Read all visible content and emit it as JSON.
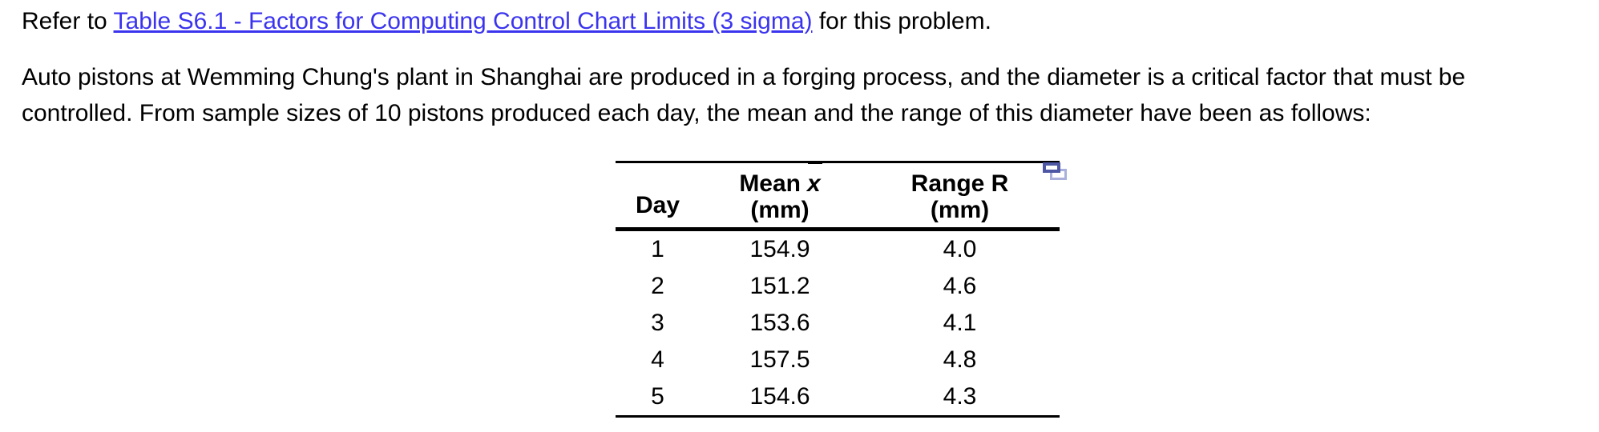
{
  "colors": {
    "background": "#ffffff",
    "text": "#000000",
    "link": "#3b34ee",
    "table_rule": "#000000",
    "copy_icon_front": "#4d57a4",
    "copy_icon_back": "#aab0dc"
  },
  "intro": {
    "prefix": "Refer to ",
    "link_text": "Table S6.1 - Factors for Computing Control Chart Limits (3 sigma)",
    "suffix": " for this problem."
  },
  "problem": {
    "lines": [
      "Auto pistons at Wemming Chung's plant in Shanghai are produced in a forging process, and the diameter is a critical factor that must be",
      "controlled. From sample sizes of 10 pistons produced each day, the mean and the range of this diameter have been as follows:"
    ]
  },
  "icons": {
    "copy": "copy-icon"
  },
  "table": {
    "headers": {
      "day": "Day",
      "mean_prefix": "Mean",
      "mean_symbol": "x",
      "mean_unit": "(mm)",
      "range_label": "Range R",
      "range_unit": "(mm)"
    },
    "rows": [
      {
        "day": "1",
        "mean": "154.9",
        "range": "4.0"
      },
      {
        "day": "2",
        "mean": "151.2",
        "range": "4.6"
      },
      {
        "day": "3",
        "mean": "153.6",
        "range": "4.1"
      },
      {
        "day": "4",
        "mean": "157.5",
        "range": "4.8"
      },
      {
        "day": "5",
        "mean": "154.6",
        "range": "4.3"
      }
    ]
  },
  "chart_data": {
    "type": "table",
    "columns": [
      "Day",
      "Mean x-bar (mm)",
      "Range R (mm)"
    ],
    "rows": [
      [
        1,
        154.9,
        4.0
      ],
      [
        2,
        151.2,
        4.6
      ],
      [
        3,
        153.6,
        4.1
      ],
      [
        4,
        157.5,
        4.8
      ],
      [
        5,
        154.6,
        4.3
      ]
    ]
  }
}
